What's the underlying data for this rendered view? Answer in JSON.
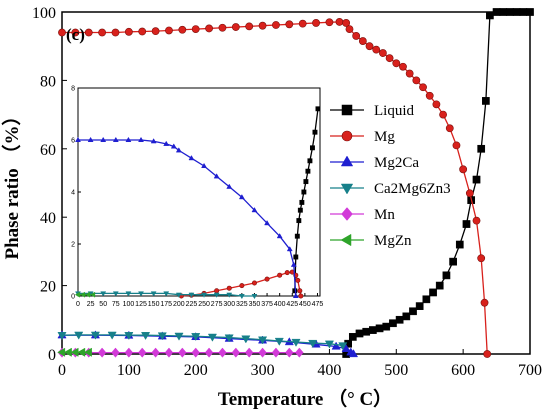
{
  "chart_data": {
    "type": "line",
    "panel_label": "(c)",
    "xlabel": "Temperature （° C）",
    "ylabel": "Phase ratio （%）",
    "xlim": [
      0,
      700
    ],
    "ylim": [
      0,
      100
    ],
    "xticks": [
      0,
      100,
      200,
      300,
      400,
      500,
      600,
      700
    ],
    "yticks": [
      0,
      20,
      40,
      60,
      80,
      100
    ],
    "legend_position": "right",
    "series": [
      {
        "name": "Liquid",
        "color": "#000000",
        "marker": "square",
        "points": [
          [
            425,
            0
          ],
          [
            428,
            3
          ],
          [
            435,
            5
          ],
          [
            445,
            6
          ],
          [
            455,
            6.5
          ],
          [
            465,
            7
          ],
          [
            475,
            7.5
          ],
          [
            485,
            8
          ],
          [
            495,
            9
          ],
          [
            505,
            10
          ],
          [
            515,
            11
          ],
          [
            525,
            12.5
          ],
          [
            535,
            14
          ],
          [
            545,
            16
          ],
          [
            555,
            18
          ],
          [
            565,
            20
          ],
          [
            575,
            23
          ],
          [
            585,
            27
          ],
          [
            595,
            32
          ],
          [
            605,
            38
          ],
          [
            612,
            45
          ],
          [
            620,
            51
          ],
          [
            627,
            60
          ],
          [
            634,
            74
          ],
          [
            640,
            99
          ],
          [
            650,
            100
          ],
          [
            660,
            100
          ],
          [
            670,
            100
          ],
          [
            680,
            100
          ],
          [
            690,
            100
          ],
          [
            700,
            100
          ]
        ]
      },
      {
        "name": "Mg",
        "color": "#d8211c",
        "marker": "circle",
        "points": [
          [
            0,
            94
          ],
          [
            20,
            94
          ],
          [
            40,
            94
          ],
          [
            60,
            94
          ],
          [
            80,
            94
          ],
          [
            100,
            94.2
          ],
          [
            120,
            94.3
          ],
          [
            140,
            94.4
          ],
          [
            160,
            94.6
          ],
          [
            180,
            94.8
          ],
          [
            200,
            95
          ],
          [
            220,
            95.2
          ],
          [
            240,
            95.4
          ],
          [
            260,
            95.6
          ],
          [
            280,
            95.8
          ],
          [
            300,
            96
          ],
          [
            320,
            96.2
          ],
          [
            340,
            96.4
          ],
          [
            360,
            96.6
          ],
          [
            380,
            96.8
          ],
          [
            400,
            97
          ],
          [
            415,
            97.1
          ],
          [
            425,
            96.8
          ],
          [
            430,
            95
          ],
          [
            440,
            93
          ],
          [
            450,
            91.5
          ],
          [
            460,
            90
          ],
          [
            470,
            89
          ],
          [
            480,
            88
          ],
          [
            490,
            86.5
          ],
          [
            500,
            85
          ],
          [
            510,
            84
          ],
          [
            520,
            82
          ],
          [
            530,
            80
          ],
          [
            540,
            78
          ],
          [
            550,
            75.5
          ],
          [
            560,
            73
          ],
          [
            570,
            70
          ],
          [
            580,
            66
          ],
          [
            590,
            61
          ],
          [
            600,
            54
          ],
          [
            610,
            47
          ],
          [
            620,
            39
          ],
          [
            627,
            28
          ],
          [
            632,
            15
          ],
          [
            636,
            0
          ]
        ]
      },
      {
        "name": "Mg2Ca",
        "color": "#1f1fd0",
        "marker": "triangle-up",
        "points": [
          [
            0,
            5.5
          ],
          [
            50,
            5.5
          ],
          [
            100,
            5.4
          ],
          [
            150,
            5.2
          ],
          [
            200,
            5
          ],
          [
            250,
            4.5
          ],
          [
            300,
            4
          ],
          [
            340,
            3.5
          ],
          [
            380,
            2.8
          ],
          [
            410,
            2.2
          ],
          [
            425,
            1.5
          ],
          [
            432,
            0.5
          ],
          [
            436,
            0
          ]
        ]
      },
      {
        "name": "Ca2Mg6Zn3",
        "color": "#17808a",
        "marker": "triangle-down",
        "points": [
          [
            0,
            5.5
          ],
          [
            25,
            5.6
          ],
          [
            50,
            5.6
          ],
          [
            75,
            5.6
          ],
          [
            100,
            5.5
          ],
          [
            125,
            5.5
          ],
          [
            150,
            5.4
          ],
          [
            175,
            5.3
          ],
          [
            200,
            5.2
          ],
          [
            225,
            5
          ],
          [
            250,
            4.8
          ],
          [
            275,
            4.5
          ],
          [
            300,
            4.2
          ],
          [
            325,
            3.8
          ],
          [
            350,
            3.5
          ],
          [
            375,
            3.2
          ],
          [
            400,
            3
          ],
          [
            420,
            2.5
          ]
        ]
      },
      {
        "name": "Mn",
        "color": "#d23ad8",
        "marker": "diamond",
        "points": [
          [
            0,
            0.4
          ],
          [
            20,
            0.4
          ],
          [
            40,
            0.4
          ],
          [
            60,
            0.4
          ],
          [
            80,
            0.4
          ],
          [
            100,
            0.4
          ],
          [
            120,
            0.4
          ],
          [
            140,
            0.4
          ],
          [
            160,
            0.4
          ],
          [
            180,
            0.4
          ],
          [
            200,
            0.4
          ],
          [
            220,
            0.4
          ],
          [
            240,
            0.4
          ],
          [
            260,
            0.4
          ],
          [
            280,
            0.4
          ],
          [
            300,
            0.4
          ],
          [
            320,
            0.4
          ],
          [
            340,
            0.4
          ],
          [
            355,
            0.4
          ]
        ]
      },
      {
        "name": "MgZn",
        "color": "#2ea42a",
        "marker": "triangle-left",
        "points": [
          [
            0,
            0.5
          ],
          [
            10,
            0.5
          ],
          [
            20,
            0.5
          ],
          [
            30,
            0.5
          ],
          [
            40,
            0.5
          ]
        ]
      }
    ],
    "inset": {
      "xlim": [
        0,
        480
      ],
      "ylim": [
        0,
        8
      ],
      "xticks": [
        0,
        25,
        50,
        75,
        100,
        125,
        150,
        175,
        200,
        225,
        250,
        275,
        300,
        325,
        350,
        375,
        400,
        425,
        450,
        475
      ],
      "yticks": [
        0,
        2,
        4,
        6,
        8
      ],
      "series": [
        {
          "name": "Liquid",
          "color": "#000000",
          "marker": "square",
          "points": [
            [
              430,
              0.2
            ],
            [
              432,
              1.5
            ],
            [
              435,
              2.3
            ],
            [
              438,
              2.9
            ],
            [
              441,
              3.3
            ],
            [
              444,
              3.6
            ],
            [
              448,
              4
            ],
            [
              452,
              4.4
            ],
            [
              456,
              4.8
            ],
            [
              460,
              5.2
            ],
            [
              465,
              5.7
            ],
            [
              470,
              6.3
            ],
            [
              476,
              7.2
            ]
          ]
        },
        {
          "name": "Mg",
          "color": "#d8211c",
          "marker": "circle",
          "points": [
            [
              205,
              0
            ],
            [
              225,
              0.03
            ],
            [
              250,
              0.1
            ],
            [
              275,
              0.2
            ],
            [
              300,
              0.3
            ],
            [
              325,
              0.4
            ],
            [
              350,
              0.5
            ],
            [
              375,
              0.65
            ],
            [
              400,
              0.8
            ],
            [
              415,
              0.9
            ],
            [
              425,
              0.92
            ],
            [
              432,
              0.8
            ],
            [
              436,
              0.6
            ],
            [
              440,
              0.2
            ],
            [
              442,
              0
            ]
          ]
        },
        {
          "name": "Mg2Ca",
          "color": "#1f1fd0",
          "marker": "triangle-up",
          "points": [
            [
              0,
              6
            ],
            [
              25,
              6
            ],
            [
              50,
              6
            ],
            [
              75,
              6
            ],
            [
              100,
              6
            ],
            [
              125,
              6
            ],
            [
              150,
              5.95
            ],
            [
              175,
              5.85
            ],
            [
              190,
              5.75
            ],
            [
              200,
              5.6
            ],
            [
              225,
              5.3
            ],
            [
              250,
              5
            ],
            [
              275,
              4.6
            ],
            [
              300,
              4.2
            ],
            [
              325,
              3.8
            ],
            [
              350,
              3.3
            ],
            [
              375,
              2.8
            ],
            [
              400,
              2.3
            ],
            [
              420,
              1.8
            ],
            [
              428,
              1.2
            ],
            [
              432,
              0
            ]
          ]
        },
        {
          "name": "Ca2Mg6Zn3",
          "color": "#17808a",
          "marker": "triangle-down",
          "points": [
            [
              0,
              0.1
            ],
            [
              25,
              0.1
            ],
            [
              50,
              0.1
            ],
            [
              75,
              0.1
            ],
            [
              100,
              0.1
            ],
            [
              125,
              0.1
            ],
            [
              150,
              0.1
            ],
            [
              175,
              0.1
            ],
            [
              200,
              0.05
            ],
            [
              225,
              0.05
            ],
            [
              250,
              0.05
            ],
            [
              275,
              0.05
            ],
            [
              300,
              0.05
            ],
            [
              325,
              0
            ],
            [
              350,
              0
            ]
          ]
        },
        {
          "name": "MgZn",
          "color": "#2ea42a",
          "marker": "triangle-left",
          "points": [
            [
              0,
              0.05
            ],
            [
              10,
              0.05
            ],
            [
              20,
              0.05
            ],
            [
              30,
              0.05
            ]
          ]
        }
      ]
    }
  }
}
